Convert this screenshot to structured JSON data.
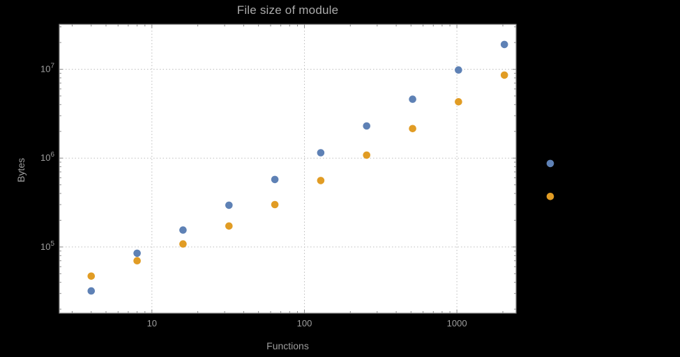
{
  "figure": {
    "background": "#000000"
  },
  "chart_data": {
    "type": "scatter",
    "title": "File size of module",
    "xlabel": "Functions",
    "ylabel": "Bytes",
    "x_scale": "log",
    "y_scale": "log",
    "grid": {
      "style": "dotted",
      "color": "#bdbdbd",
      "on": "major-only"
    },
    "legend": "none",
    "frame": true,
    "frame_color": "#8a8a8a",
    "plot_background": "#ffffff",
    "text_color": "#9e9e9e",
    "title_color": "#ababab",
    "point_radius": 5.3,
    "xlim": [
      2.47,
      2444
    ],
    "ylim": [
      18000,
      32000000
    ],
    "x": [
      4,
      8,
      16,
      32,
      64,
      128,
      256,
      512,
      1024,
      2048,
      4096
    ],
    "series": [
      {
        "name": "series-blue",
        "color": "#5E81B5",
        "values": [
          32000,
          85000,
          155000,
          295000,
          575000,
          1150000,
          2300000,
          4600000,
          9800000,
          19000000,
          870000
        ]
      },
      {
        "name": "series-orange",
        "color": "#E19C24",
        "values": [
          47000,
          70000,
          108000,
          172000,
          300000,
          560000,
          1080000,
          2150000,
          4300000,
          8600000,
          370000
        ]
      }
    ],
    "x_ticks": {
      "values": [
        10,
        100,
        1000
      ],
      "labels": [
        "10",
        "100",
        "1000"
      ]
    },
    "y_ticks": {
      "values": [
        100000,
        1000000,
        10000000
      ],
      "labels": [
        {
          "base": "10",
          "exp": "5"
        },
        {
          "base": "10",
          "exp": "6"
        },
        {
          "base": "10",
          "exp": "7"
        }
      ]
    }
  }
}
